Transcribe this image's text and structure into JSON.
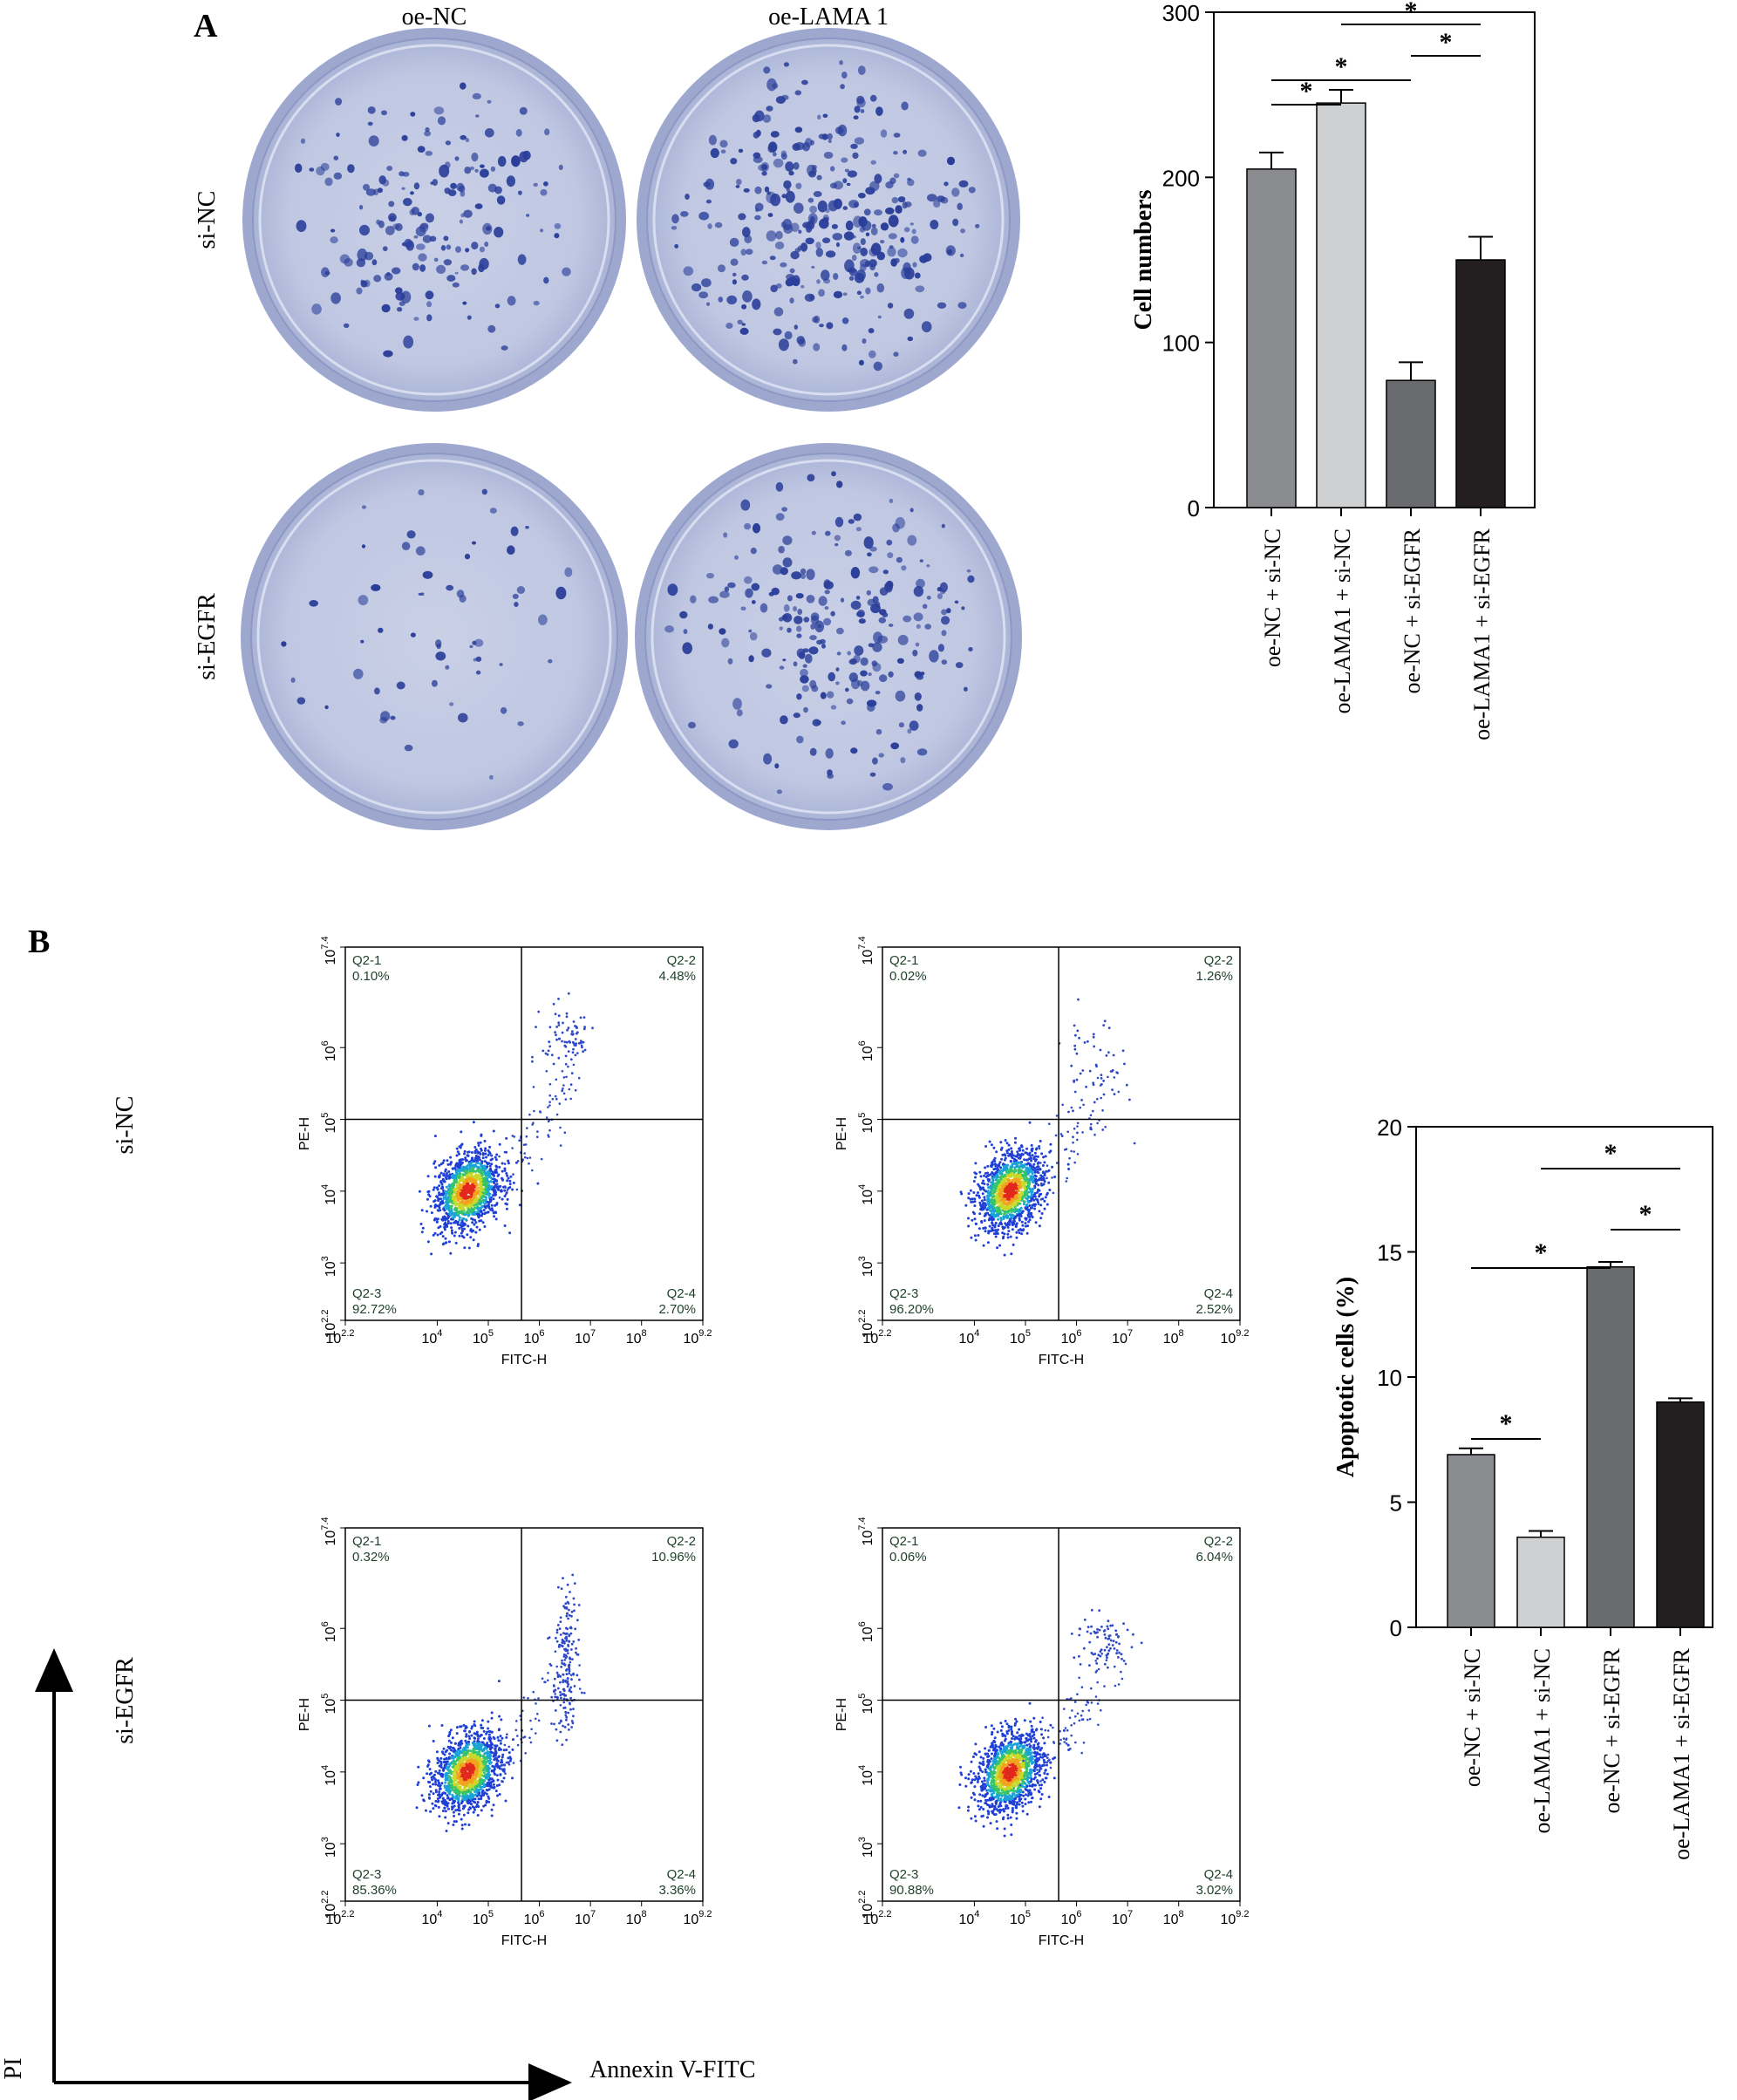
{
  "panel_a": {
    "label": "A",
    "column_labels": [
      "oe-NC",
      "oe-LAMA 1"
    ],
    "row_labels": [
      "si-NC",
      "si-EGFR"
    ]
  },
  "panel_b": {
    "label": "B",
    "row_labels": [
      "si-NC",
      "si-EGFR"
    ],
    "arrow_y_label": "PI",
    "arrow_x_label": "Annexin V-FITC",
    "flow_axis": {
      "xlabel": "FITC-H",
      "ylabel": "PE-H",
      "x_ticks": [
        {
          "b": "10",
          "e": "2.2"
        },
        {
          "b": "10",
          "e": "4"
        },
        {
          "b": "10",
          "e": "5"
        },
        {
          "b": "10",
          "e": "6"
        },
        {
          "b": "10",
          "e": "7"
        },
        {
          "b": "10",
          "e": "8"
        },
        {
          "b": "10",
          "e": "9.2"
        }
      ],
      "y_ticks": [
        {
          "b": "10",
          "e": "2.2"
        },
        {
          "b": "10",
          "e": "3"
        },
        {
          "b": "10",
          "e": "4"
        },
        {
          "b": "10",
          "e": "5"
        },
        {
          "b": "10",
          "e": "6"
        },
        {
          "b": "10",
          "e": "7.4"
        }
      ]
    },
    "flow_plots": [
      {
        "q1": "Q2-1",
        "q1v": "0.10%",
        "q2": "Q2-2",
        "q2v": "4.48%",
        "q3": "Q2-3",
        "q3v": "92.72%",
        "q4": "Q2-4",
        "q4v": "2.70%"
      },
      {
        "q1": "Q2-1",
        "q1v": "0.02%",
        "q2": "Q2-2",
        "q2v": "1.26%",
        "q3": "Q2-3",
        "q3v": "96.20%",
        "q4": "Q2-4",
        "q4v": "2.52%"
      },
      {
        "q1": "Q2-1",
        "q1v": "0.32%",
        "q2": "Q2-2",
        "q2v": "10.96%",
        "q3": "Q2-3",
        "q3v": "85.36%",
        "q4": "Q2-4",
        "q4v": "3.36%"
      },
      {
        "q1": "Q2-1",
        "q1v": "0.06%",
        "q2": "Q2-2",
        "q2v": "6.04%",
        "q3": "Q2-3",
        "q3v": "90.88%",
        "q4": "Q2-4",
        "q4v": "3.02%"
      }
    ]
  },
  "colors": {
    "bar_fills": [
      "#8a8c8f",
      "#cfd0d2",
      "#696b6f",
      "#231f20"
    ],
    "dish_bg": "#c5cce4",
    "dish_rim": "#9ea8cf",
    "colony": "#2b3f9a",
    "dot_blue": "#2f49c8"
  },
  "chart_data": [
    {
      "type": "bar",
      "categories": [
        "oe-NC + si-NC",
        "oe-LAMA1 + si-NC",
        "oe-NC + si-EGFR",
        "oe-LAMA1 + si-EGFR"
      ],
      "values": [
        205,
        245,
        77,
        150
      ],
      "errors": [
        10,
        8,
        11,
        14
      ],
      "xlabel": "",
      "ylabel": "Cell numbers",
      "ylim": [
        0,
        300
      ],
      "yticks": [
        0,
        100,
        200,
        300
      ],
      "significance": [
        {
          "from": 0,
          "to": 1,
          "label": "*"
        },
        {
          "from": 0,
          "to": 2,
          "label": "*"
        },
        {
          "from": 1,
          "to": 3,
          "label": "*"
        },
        {
          "from": 2,
          "to": 3,
          "label": "*"
        }
      ]
    },
    {
      "type": "bar",
      "categories": [
        "oe-NC + si-NC",
        "oe-LAMA1 + si-NC",
        "oe-NC + si-EGFR",
        "oe-LAMA1 + si-EGFR"
      ],
      "values": [
        6.9,
        3.6,
        14.4,
        9.0
      ],
      "errors": [
        0.25,
        0.25,
        0.2,
        0.15
      ],
      "xlabel": "",
      "ylabel": "Apoptotic cells (%)",
      "ylim": [
        0,
        20
      ],
      "yticks": [
        0,
        5,
        10,
        15,
        20
      ],
      "significance": [
        {
          "from": 0,
          "to": 1,
          "label": "*"
        },
        {
          "from": 0,
          "to": 2,
          "label": "*"
        },
        {
          "from": 1,
          "to": 3,
          "label": "*"
        },
        {
          "from": 2,
          "to": 3,
          "label": "*"
        }
      ]
    }
  ]
}
